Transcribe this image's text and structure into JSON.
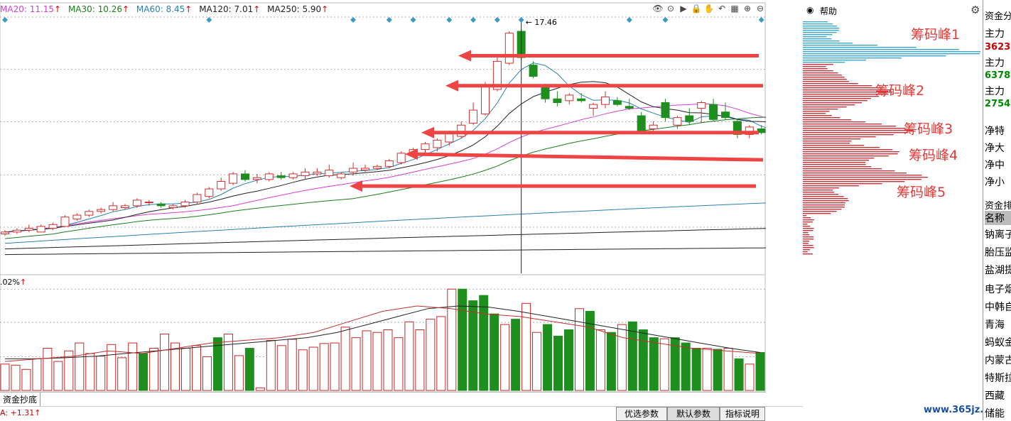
{
  "ma_legend": [
    {
      "label": "MA20: 11.15",
      "color": "#d53fd5"
    },
    {
      "label": "MA30: 10.26",
      "color": "#1c7d1c"
    },
    {
      "label": "MA60: 8.45",
      "color": "#2a7fb0"
    },
    {
      "label": "MA120: 7.01",
      "color": "#222222"
    },
    {
      "label": "MA250: 5.90",
      "color": "#222222"
    }
  ],
  "toolbar_icons": [
    "eye-icon",
    "zoom-icon",
    "play-icon",
    "lock-icon",
    "hand-icon",
    "undo-icon",
    "bars-icon",
    "plus-icon",
    "minus-icon"
  ],
  "volume_legend": {
    "label": ".02%"
  },
  "tab_label": "资金抄底",
  "bottom_a_label": "A: +1.31",
  "buttons": {
    "b1": "优选参数",
    "b2": "默认参数",
    "b3": "指标说明"
  },
  "help_label": "帮助",
  "watermark": "www.365jz.com",
  "chip_peak_labels": [
    "筹码峰1",
    "筹码峰2",
    "筹码峰3",
    "筹码峰4",
    "筹码峰5"
  ],
  "right_panel": {
    "title": "资金分",
    "zl1": "主力",
    "v1": "3623.",
    "zl2": "主力",
    "v2": "6378.",
    "zl3": "主力",
    "v3": "2754.",
    "net1": "净特",
    "net2": "净大",
    "net3": "净中",
    "net4": "净小",
    "rank_title": "资金排",
    "name_hdr": "名称",
    "names": [
      "钠离子",
      "胎压监",
      "盐湖提",
      "电子烟",
      "中韩自",
      "青海",
      "蚂蚁金",
      "内蒙古",
      "特斯拉",
      "西藏",
      "储能"
    ]
  },
  "chart_data": [
    {
      "type": "candlestick",
      "price_axis_ticks": [
        18.16,
        15.37,
        12.58,
        9.75,
        6.96
      ],
      "ylim": [
        4.5,
        18.16
      ],
      "high_marker": "17.46",
      "candles": [
        [
          6.6,
          6.8,
          6.5,
          6.7
        ],
        [
          6.7,
          6.9,
          6.6,
          6.8
        ],
        [
          6.8,
          7.1,
          6.7,
          6.9
        ],
        [
          6.7,
          7.1,
          6.7,
          7.0
        ],
        [
          6.9,
          7.2,
          6.8,
          7.1
        ],
        [
          7.0,
          7.6,
          7.0,
          7.5
        ],
        [
          7.4,
          7.7,
          7.3,
          7.6
        ],
        [
          7.6,
          7.9,
          7.5,
          7.8
        ],
        [
          7.8,
          8.0,
          7.7,
          7.9
        ],
        [
          7.9,
          8.3,
          7.8,
          8.1
        ],
        [
          8.0,
          8.2,
          7.9,
          8.1
        ],
        [
          8.1,
          8.5,
          8.0,
          8.4
        ],
        [
          8.3,
          8.4,
          8.1,
          8.3
        ],
        [
          8.2,
          8.3,
          8.0,
          8.1
        ],
        [
          8.0,
          8.2,
          7.9,
          8.1
        ],
        [
          8.1,
          8.4,
          8.0,
          8.3
        ],
        [
          8.3,
          8.8,
          8.2,
          8.7
        ],
        [
          8.6,
          9.1,
          8.5,
          9.0
        ],
        [
          9.0,
          9.6,
          8.9,
          9.4
        ],
        [
          9.3,
          9.9,
          9.2,
          9.8
        ],
        [
          9.8,
          10.0,
          9.4,
          9.5
        ],
        [
          9.5,
          9.8,
          9.3,
          9.6
        ],
        [
          9.5,
          9.9,
          9.4,
          9.8
        ],
        [
          9.7,
          9.9,
          9.5,
          9.6
        ],
        [
          9.6,
          9.9,
          9.5,
          9.8
        ],
        [
          9.7,
          10.1,
          9.5,
          9.9
        ],
        [
          9.8,
          10.1,
          9.7,
          9.9
        ],
        [
          9.7,
          10.3,
          9.6,
          10.0
        ],
        [
          9.6,
          9.9,
          9.5,
          9.8
        ],
        [
          9.9,
          10.4,
          9.7,
          10.1
        ],
        [
          10.0,
          10.3,
          9.9,
          10.1
        ],
        [
          10.1,
          10.3,
          10.0,
          10.2
        ],
        [
          10.2,
          10.6,
          10.1,
          10.5
        ],
        [
          10.4,
          11.0,
          10.3,
          10.9
        ],
        [
          10.9,
          11.2,
          10.7,
          11.1
        ],
        [
          11.1,
          11.5,
          10.9,
          11.4
        ],
        [
          11.2,
          11.7,
          11.0,
          11.6
        ],
        [
          11.5,
          12.1,
          11.3,
          12.0
        ],
        [
          11.8,
          12.6,
          11.7,
          12.4
        ],
        [
          12.5,
          13.6,
          12.4,
          13.2
        ],
        [
          13.0,
          14.7,
          12.9,
          14.5
        ],
        [
          14.3,
          16.0,
          14.2,
          15.8
        ],
        [
          15.7,
          17.4,
          15.6,
          17.3
        ],
        [
          17.4,
          17.5,
          15.9,
          16.0
        ],
        [
          15.6,
          15.8,
          14.9,
          15.0
        ],
        [
          14.4,
          14.6,
          13.6,
          13.8
        ],
        [
          13.8,
          14.2,
          13.4,
          13.6
        ],
        [
          13.7,
          14.1,
          13.5,
          14.0
        ],
        [
          13.8,
          14.1,
          13.6,
          13.7
        ],
        [
          13.3,
          13.6,
          12.9,
          13.5
        ],
        [
          13.5,
          14.2,
          13.3,
          13.9
        ],
        [
          13.7,
          13.9,
          13.4,
          13.5
        ],
        [
          13.4,
          13.8,
          13.2,
          13.3
        ],
        [
          12.9,
          13.1,
          11.9,
          12.1
        ],
        [
          12.2,
          12.6,
          11.9,
          12.4
        ],
        [
          13.6,
          13.8,
          12.6,
          12.8
        ],
        [
          12.4,
          12.9,
          12.2,
          12.8
        ],
        [
          12.9,
          13.3,
          12.4,
          12.6
        ],
        [
          13.3,
          13.7,
          12.5,
          13.6
        ],
        [
          13.5,
          13.8,
          12.6,
          12.7
        ],
        [
          13.1,
          13.6,
          12.7,
          12.8
        ],
        [
          12.6,
          12.7,
          11.7,
          11.9
        ],
        [
          11.9,
          12.4,
          11.7,
          12.3
        ],
        [
          12.2,
          12.4,
          11.9,
          12.0
        ],
        [
          12.3,
          12.4,
          11.6,
          11.8
        ],
        [
          11.7,
          11.8,
          10.6,
          11.0
        ],
        [
          10.9,
          11.2,
          10.4,
          11.2
        ],
        [
          11.2,
          11.4,
          10.8,
          11.1
        ],
        [
          11.0,
          11.2,
          10.7,
          11.0
        ],
        [
          11.0,
          11.1,
          10.6,
          10.7
        ],
        [
          10.7,
          11.0,
          10.5,
          10.9
        ],
        [
          10.2,
          10.5,
          9.8,
          10.1
        ]
      ],
      "ma_series": [
        {
          "name": "MA20",
          "color": "#d53fd5",
          "x": [
            0,
            71
          ],
          "values": [
            6.6,
            11.15
          ]
        },
        {
          "name": "MA30",
          "color": "#1c7d1c",
          "x": [
            0,
            71
          ],
          "values": [
            6.4,
            10.26
          ]
        },
        {
          "name": "MA60",
          "color": "#2a7fb0",
          "x": [
            0,
            71
          ],
          "values": [
            6.1,
            8.45
          ]
        },
        {
          "name": "MA120",
          "color": "#222222",
          "x": [
            0,
            71
          ],
          "values": [
            5.8,
            7.01
          ]
        },
        {
          "name": "MA250",
          "color": "#222222",
          "x": [
            0,
            71
          ],
          "values": [
            5.5,
            5.9
          ]
        }
      ],
      "marker_days": [
        0,
        17,
        29,
        32,
        34,
        37,
        39,
        41,
        43,
        52,
        55,
        63
      ],
      "crosshair_day": 43
    },
    {
      "type": "bar",
      "volume_axis_ticks": [
        0.192,
        0.129,
        0.064
      ],
      "ylim": [
        0,
        0.195
      ],
      "values": [
        0.05,
        0.048,
        0.04,
        0.06,
        0.08,
        0.055,
        0.075,
        0.09,
        0.07,
        0.065,
        0.087,
        0.062,
        0.09,
        0.07,
        0.08,
        0.107,
        0.09,
        0.08,
        0.085,
        0.064,
        0.1,
        0.107,
        0.066,
        0.08,
        0.005,
        0.095,
        0.085,
        0.097,
        0.077,
        0.082,
        0.089,
        0.09,
        0.12,
        0.1,
        0.113,
        0.11,
        0.115,
        0.1,
        0.13,
        0.115,
        0.135,
        0.14,
        0.192,
        0.192,
        0.17,
        0.18,
        0.145,
        0.125,
        0.135,
        0.165,
        0.11,
        0.125,
        0.103,
        0.115,
        0.155,
        0.15,
        0.115,
        0.11,
        0.125,
        0.13,
        0.115,
        0.1,
        0.098,
        0.1,
        0.09,
        0.08,
        0.08,
        0.078,
        0.08,
        0.06,
        0.05,
        0.072
      ],
      "ma_series": [
        {
          "name": "VMA1",
          "color": "#222222",
          "values": [
            0.06,
            0.06,
            0.062,
            0.065,
            0.07,
            0.075,
            0.08,
            0.085,
            0.09,
            0.095,
            0.1,
            0.11,
            0.125,
            0.14,
            0.155,
            0.16,
            0.158,
            0.15,
            0.14,
            0.13,
            0.12,
            0.11,
            0.1,
            0.09,
            0.08,
            0.072
          ]
        },
        {
          "name": "VMA2",
          "color": "#c03030",
          "values": [
            0.055,
            0.06,
            0.065,
            0.075,
            0.07,
            0.08,
            0.09,
            0.095,
            0.1,
            0.11,
            0.13,
            0.15,
            0.16,
            0.155,
            0.145,
            0.14,
            0.13,
            0.12,
            0.1,
            0.09,
            0.08,
            0.075,
            0.07
          ]
        }
      ]
    }
  ]
}
